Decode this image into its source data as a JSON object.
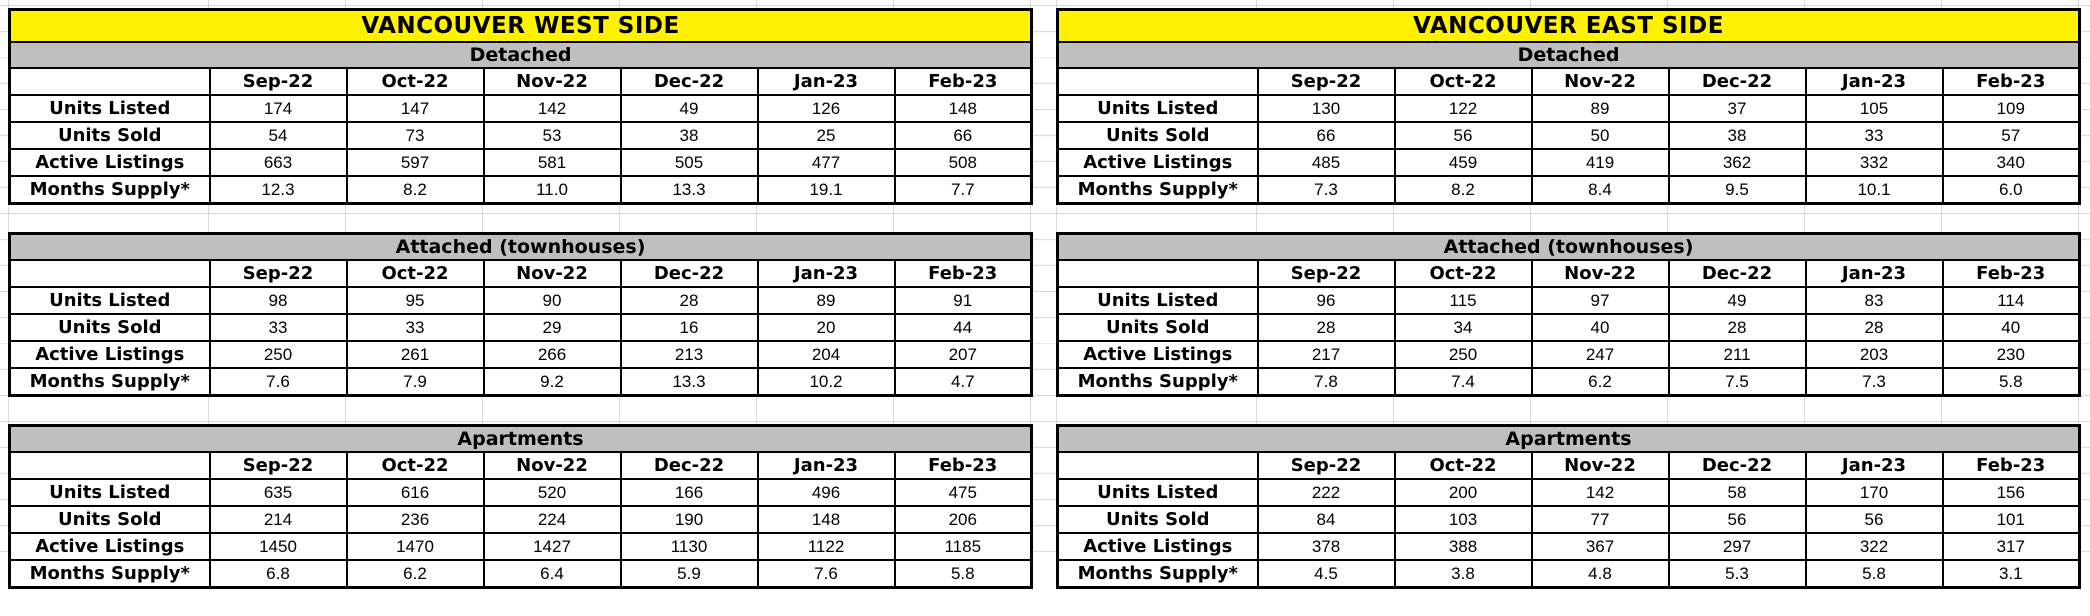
{
  "colors": {
    "title_bg": "#FFF200",
    "section_bg": "#BFBFBF",
    "grid_line": "#D9D9D9",
    "table_border": "#000000"
  },
  "panels": [
    {
      "id": "west",
      "title": "VANCOUVER WEST SIDE",
      "sections": [
        {
          "name": "Detached",
          "months": [
            "Sep-22",
            "Oct-22",
            "Nov-22",
            "Dec-22",
            "Jan-23",
            "Feb-23"
          ],
          "rows": [
            {
              "label": "Units Listed",
              "values": [
                "174",
                "147",
                "142",
                "49",
                "126",
                "148"
              ]
            },
            {
              "label": "Units Sold",
              "values": [
                "54",
                "73",
                "53",
                "38",
                "25",
                "66"
              ]
            },
            {
              "label": "Active Listings",
              "values": [
                "663",
                "597",
                "581",
                "505",
                "477",
                "508"
              ]
            },
            {
              "label": "Months Supply*",
              "values": [
                "12.3",
                "8.2",
                "11.0",
                "13.3",
                "19.1",
                "7.7"
              ]
            }
          ]
        },
        {
          "name": "Attached (townhouses)",
          "months": [
            "Sep-22",
            "Oct-22",
            "Nov-22",
            "Dec-22",
            "Jan-23",
            "Feb-23"
          ],
          "rows": [
            {
              "label": "Units Listed",
              "values": [
                "98",
                "95",
                "90",
                "28",
                "89",
                "91"
              ]
            },
            {
              "label": "Units Sold",
              "values": [
                "33",
                "33",
                "29",
                "16",
                "20",
                "44"
              ]
            },
            {
              "label": "Active Listings",
              "values": [
                "250",
                "261",
                "266",
                "213",
                "204",
                "207"
              ]
            },
            {
              "label": "Months Supply*",
              "values": [
                "7.6",
                "7.9",
                "9.2",
                "13.3",
                "10.2",
                "4.7"
              ]
            }
          ]
        },
        {
          "name": "Apartments",
          "months": [
            "Sep-22",
            "Oct-22",
            "Nov-22",
            "Dec-22",
            "Jan-23",
            "Feb-23"
          ],
          "rows": [
            {
              "label": "Units Listed",
              "values": [
                "635",
                "616",
                "520",
                "166",
                "496",
                "475"
              ]
            },
            {
              "label": "Units Sold",
              "values": [
                "214",
                "236",
                "224",
                "190",
                "148",
                "206"
              ]
            },
            {
              "label": "Active Listings",
              "values": [
                "1450",
                "1470",
                "1427",
                "1130",
                "1122",
                "1185"
              ]
            },
            {
              "label": "Months Supply*",
              "values": [
                "6.8",
                "6.2",
                "6.4",
                "5.9",
                "7.6",
                "5.8"
              ]
            }
          ]
        }
      ]
    },
    {
      "id": "east",
      "title": "VANCOUVER EAST SIDE",
      "sections": [
        {
          "name": "Detached",
          "months": [
            "Sep-22",
            "Oct-22",
            "Nov-22",
            "Dec-22",
            "Jan-23",
            "Feb-23"
          ],
          "rows": [
            {
              "label": "Units Listed",
              "values": [
                "130",
                "122",
                "89",
                "37",
                "105",
                "109"
              ]
            },
            {
              "label": "Units Sold",
              "values": [
                "66",
                "56",
                "50",
                "38",
                "33",
                "57"
              ]
            },
            {
              "label": "Active Listings",
              "values": [
                "485",
                "459",
                "419",
                "362",
                "332",
                "340"
              ]
            },
            {
              "label": "Months Supply*",
              "values": [
                "7.3",
                "8.2",
                "8.4",
                "9.5",
                "10.1",
                "6.0"
              ]
            }
          ]
        },
        {
          "name": "Attached (townhouses)",
          "months": [
            "Sep-22",
            "Oct-22",
            "Nov-22",
            "Dec-22",
            "Jan-23",
            "Feb-23"
          ],
          "rows": [
            {
              "label": "Units Listed",
              "values": [
                "96",
                "115",
                "97",
                "49",
                "83",
                "114"
              ]
            },
            {
              "label": "Units Sold",
              "values": [
                "28",
                "34",
                "40",
                "28",
                "28",
                "40"
              ]
            },
            {
              "label": "Active Listings",
              "values": [
                "217",
                "250",
                "247",
                "211",
                "203",
                "230"
              ]
            },
            {
              "label": "Months Supply*",
              "values": [
                "7.8",
                "7.4",
                "6.2",
                "7.5",
                "7.3",
                "5.8"
              ]
            }
          ]
        },
        {
          "name": "Apartments",
          "months": [
            "Sep-22",
            "Oct-22",
            "Nov-22",
            "Dec-22",
            "Jan-23",
            "Feb-23"
          ],
          "rows": [
            {
              "label": "Units Listed",
              "values": [
                "222",
                "200",
                "142",
                "58",
                "170",
                "156"
              ]
            },
            {
              "label": "Units Sold",
              "values": [
                "84",
                "103",
                "77",
                "56",
                "56",
                "101"
              ]
            },
            {
              "label": "Active Listings",
              "values": [
                "378",
                "388",
                "367",
                "297",
                "322",
                "317"
              ]
            },
            {
              "label": "Months Supply*",
              "values": [
                "4.5",
                "3.8",
                "4.8",
                "5.3",
                "5.8",
                "3.1"
              ]
            }
          ]
        }
      ]
    }
  ]
}
